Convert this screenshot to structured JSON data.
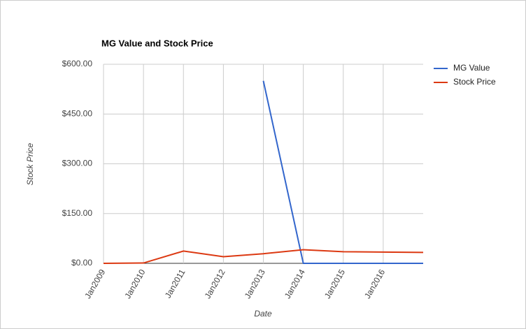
{
  "chart_data": {
    "type": "line",
    "title": "MG Value and Stock Price",
    "x_label": "Date",
    "y_label": "Stock Price",
    "x": [
      2009,
      2010,
      2011,
      2012,
      2013,
      2014,
      2015,
      2016,
      2017
    ],
    "series": [
      {
        "name": "MG Value",
        "color": "#3366cc",
        "values": [
          null,
          null,
          null,
          null,
          550,
          0,
          0,
          0,
          0
        ]
      },
      {
        "name": "Stock Price",
        "color": "#dc3912",
        "values": [
          0,
          1,
          37,
          20,
          29,
          41,
          35,
          34,
          33
        ]
      }
    ],
    "xlim": [
      2009,
      2017
    ],
    "xticks": [
      {
        "value": 2009,
        "label": "Jan2009"
      },
      {
        "value": 2010,
        "label": "Jan2010"
      },
      {
        "value": 2011,
        "label": "Jan2011"
      },
      {
        "value": 2012,
        "label": "Jan2012"
      },
      {
        "value": 2013,
        "label": "Jan2013"
      },
      {
        "value": 2014,
        "label": "Jan2014"
      },
      {
        "value": 2015,
        "label": "Jan2015"
      },
      {
        "value": 2016,
        "label": "Jan2016"
      }
    ],
    "ylim": [
      0,
      600
    ],
    "yticks": [
      {
        "value": 0,
        "label": "$0.00"
      },
      {
        "value": 150,
        "label": "$150.00"
      },
      {
        "value": 300,
        "label": "$300.00"
      },
      {
        "value": 450,
        "label": "$450.00"
      },
      {
        "value": 600,
        "label": "$600.00"
      }
    ],
    "grid": true,
    "legend": "right"
  }
}
